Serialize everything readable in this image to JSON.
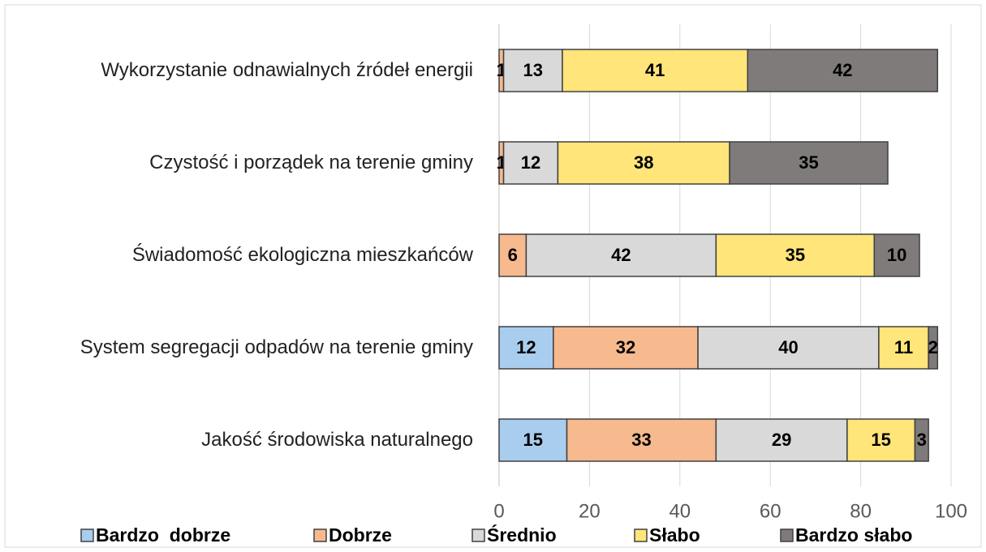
{
  "chart_data": {
    "type": "stacked-bar-horizontal",
    "categories": [
      "Wykorzystanie odnawialnych źródeł energii",
      "Czystość i porządek na terenie gminy",
      "Świadomość ekologiczna mieszkańców",
      "System segregacji odpadów na terenie gminy",
      "Jakość środowiska naturalnego"
    ],
    "series": [
      {
        "name": "Bardzo  dobrze",
        "color": "#a9cdee",
        "values": [
          null,
          null,
          null,
          12,
          15
        ]
      },
      {
        "name": "Dobrze",
        "color": "#f7b98e",
        "values": [
          1,
          1,
          6,
          32,
          33
        ]
      },
      {
        "name": "Średnio",
        "color": "#d9d9d9",
        "values": [
          13,
          12,
          42,
          40,
          29
        ]
      },
      {
        "name": "Słabo",
        "color": "#ffe57a",
        "values": [
          41,
          38,
          35,
          11,
          15
        ]
      },
      {
        "name": "Bardzo słabo",
        "color": "#7f7b7b",
        "values": [
          42,
          35,
          10,
          2,
          3
        ]
      }
    ],
    "xlim": [
      0,
      100
    ],
    "xticks": [
      0,
      20,
      40,
      60,
      80,
      100
    ],
    "grid": true,
    "legend": "bottom"
  }
}
